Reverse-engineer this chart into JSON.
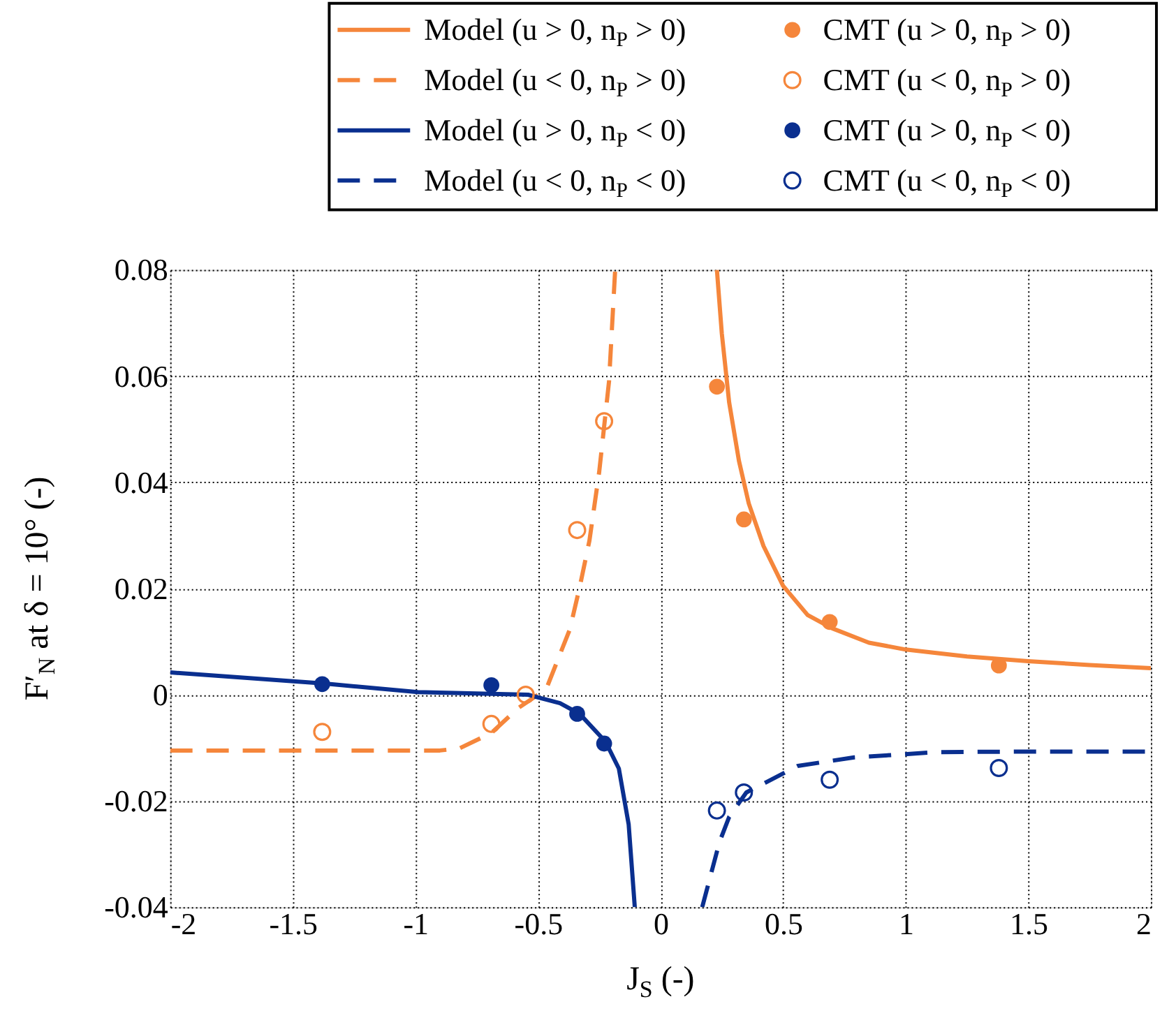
{
  "chart_data": {
    "type": "line",
    "xlabel": "J$_{S}$ (-)",
    "ylabel": "F′$_{N}$ at δ = 10° (-)",
    "xlim": [
      -2,
      2
    ],
    "ylim": [
      -0.04,
      0.08
    ],
    "xticks": [
      -2,
      -1.5,
      -1,
      -0.5,
      0,
      0.5,
      1,
      1.5,
      2
    ],
    "yticks": [
      -0.04,
      -0.02,
      0,
      0.02,
      0.04,
      0.06,
      0.08
    ],
    "grid": true,
    "legend": "top",
    "series": [
      {
        "name": "Model (u > 0, n$_{P}$ > 0)",
        "color": "#f5863b",
        "line_style": "solid",
        "marker": "none",
        "x": [
          0.23,
          0.25,
          0.28,
          0.32,
          0.36,
          0.42,
          0.5,
          0.6,
          0.7,
          0.85,
          1.0,
          1.25,
          1.5,
          1.75,
          2.0
        ],
        "values": [
          0.08,
          0.068,
          0.055,
          0.044,
          0.036,
          0.028,
          0.0205,
          0.015,
          0.0125,
          0.0098,
          0.0085,
          0.0072,
          0.0063,
          0.0056,
          0.005
        ]
      },
      {
        "name": "Model (u < 0, n$_{P}$ > 0)",
        "color": "#f5863b",
        "line_style": "dashed",
        "marker": "none",
        "x": [
          -2,
          -1.5,
          -1.0,
          -0.9,
          -0.82,
          -0.69,
          -0.58,
          -0.5,
          -0.46,
          -0.37,
          -0.33,
          -0.29,
          -0.25,
          -0.21,
          -0.185
        ],
        "values": [
          -0.0105,
          -0.0105,
          -0.0105,
          -0.0105,
          -0.0101,
          -0.0072,
          -0.0025,
          0.0,
          0.0018,
          0.0123,
          0.0202,
          0.029,
          0.042,
          0.059,
          0.08
        ]
      },
      {
        "name": "Model (u > 0, n$_{P}$ < 0)",
        "color": "#0a2f8f",
        "line_style": "solid",
        "marker": "none",
        "x": [
          -2,
          -1.37,
          -0.99,
          -0.54,
          -0.41,
          -0.33,
          -0.225,
          -0.17,
          -0.13,
          -0.105
        ],
        "values": [
          0.0042,
          0.0021,
          0.0005,
          0.0,
          -0.0016,
          -0.0036,
          -0.0088,
          -0.0139,
          -0.0244,
          -0.04
        ]
      },
      {
        "name": "Model (u < 0, n$_{P}$ < 0)",
        "color": "#0a2f8f",
        "line_style": "dashed",
        "marker": "none",
        "x": [
          0.17,
          0.24,
          0.28,
          0.35,
          0.56,
          0.79,
          1.13,
          1.51,
          2.0
        ],
        "values": [
          -0.04,
          -0.0278,
          -0.023,
          -0.0184,
          -0.0134,
          -0.0118,
          -0.0108,
          -0.0107,
          -0.0107
        ]
      },
      {
        "name": "CMT (u > 0, n$_{P}$ > 0)",
        "type": "scatter",
        "color": "#f5863b",
        "marker": "circle",
        "line_style": "solid",
        "x": [
          0.23,
          0.34,
          0.69,
          1.38
        ],
        "values": [
          0.058,
          0.033,
          0.0137,
          0.0055
        ]
      },
      {
        "name": "CMT (u < 0, n$_{P}$ > 0)",
        "type": "scatter",
        "color": "#f5863b",
        "marker": "circle",
        "line_style": "dashed",
        "x": [
          -1.38,
          -0.69,
          -0.55,
          -0.34,
          -0.23
        ],
        "values": [
          -0.007,
          -0.0055,
          0.0,
          0.031,
          0.0515
        ]
      },
      {
        "name": "CMT (u > 0, n$_{P}$ < 0)",
        "type": "scatter",
        "color": "#0a2f8f",
        "marker": "circle",
        "line_style": "solid",
        "x": [
          -1.38,
          -0.69,
          -0.34,
          -0.23
        ],
        "values": [
          0.002,
          0.0018,
          -0.0036,
          -0.0092
        ]
      },
      {
        "name": "CMT (u < 0, n$_{P}$ < 0)",
        "type": "scatter",
        "color": "#0a2f8f",
        "marker": "circle",
        "line_style": "dashed",
        "x": [
          0.23,
          0.34,
          0.69,
          1.38
        ],
        "values": [
          -0.0218,
          -0.0184,
          -0.016,
          -0.0138
        ]
      }
    ]
  }
}
